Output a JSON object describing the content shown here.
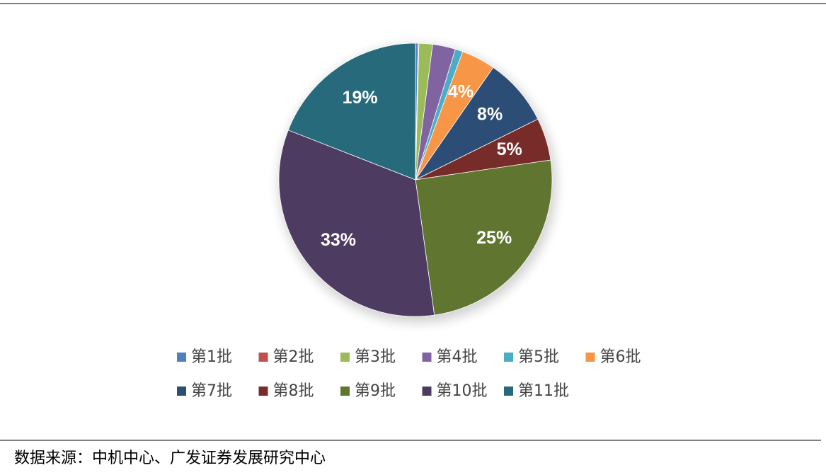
{
  "chart_data": {
    "type": "pie",
    "categories": [
      "第1批",
      "第2批",
      "第3批",
      "第4批",
      "第5批",
      "第6批",
      "第7批",
      "第8批",
      "第9批",
      "第10批",
      "第11批"
    ],
    "values": [
      0.3,
      0.1,
      1.6,
      2.7,
      0.9,
      4,
      8,
      5,
      25,
      33,
      19
    ],
    "value_labels": [
      null,
      null,
      null,
      null,
      null,
      "4%",
      "8%",
      "5%",
      "25%",
      "33%",
      "19%"
    ],
    "colors": [
      "#4f81bd",
      "#c0504d",
      "#9bbb59",
      "#8064a2",
      "#4bacc6",
      "#f79646",
      "#2c4d75",
      "#772c2a",
      "#5f7530",
      "#4d3b62",
      "#276a7c"
    ],
    "legend": "bottom",
    "source": "数据来源：中机中心、广发证券发展研究中心"
  }
}
